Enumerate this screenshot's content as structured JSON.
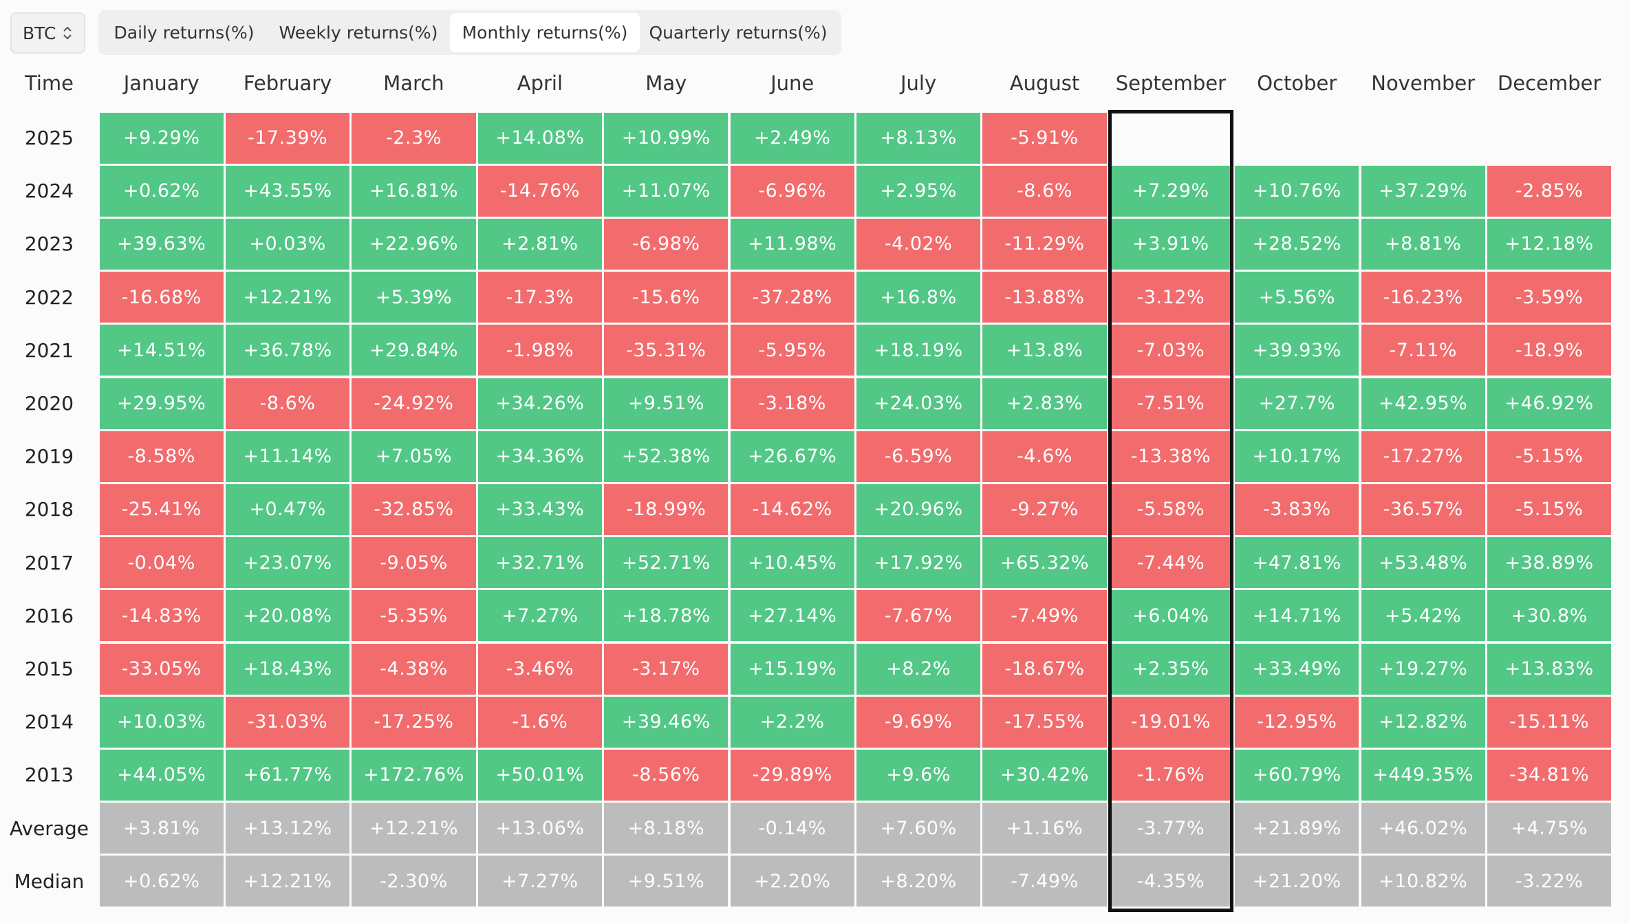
{
  "toolbar": {
    "asset": "BTC",
    "tabs": [
      "Daily returns(%)",
      "Weekly returns(%)",
      "Monthly returns(%)",
      "Quarterly returns(%)"
    ],
    "active_tab": "Monthly returns(%)"
  },
  "table": {
    "header": [
      "Time",
      "January",
      "February",
      "March",
      "April",
      "May",
      "June",
      "July",
      "August",
      "September",
      "October",
      "November",
      "December"
    ],
    "highlighted_column": "September",
    "rows": [
      {
        "label": "2025",
        "kind": "year",
        "cells": [
          "+9.29%",
          "-17.39%",
          "-2.3%",
          "+14.08%",
          "+10.99%",
          "+2.49%",
          "+8.13%",
          "-5.91%",
          null,
          null,
          null,
          null
        ]
      },
      {
        "label": "2024",
        "kind": "year",
        "cells": [
          "+0.62%",
          "+43.55%",
          "+16.81%",
          "-14.76%",
          "+11.07%",
          "-6.96%",
          "+2.95%",
          "-8.6%",
          "+7.29%",
          "+10.76%",
          "+37.29%",
          "-2.85%"
        ]
      },
      {
        "label": "2023",
        "kind": "year",
        "cells": [
          "+39.63%",
          "+0.03%",
          "+22.96%",
          "+2.81%",
          "-6.98%",
          "+11.98%",
          "-4.02%",
          "-11.29%",
          "+3.91%",
          "+28.52%",
          "+8.81%",
          "+12.18%"
        ]
      },
      {
        "label": "2022",
        "kind": "year",
        "cells": [
          "-16.68%",
          "+12.21%",
          "+5.39%",
          "-17.3%",
          "-15.6%",
          "-37.28%",
          "+16.8%",
          "-13.88%",
          "-3.12%",
          "+5.56%",
          "-16.23%",
          "-3.59%"
        ]
      },
      {
        "label": "2021",
        "kind": "year",
        "cells": [
          "+14.51%",
          "+36.78%",
          "+29.84%",
          "-1.98%",
          "-35.31%",
          "-5.95%",
          "+18.19%",
          "+13.8%",
          "-7.03%",
          "+39.93%",
          "-7.11%",
          "-18.9%"
        ]
      },
      {
        "label": "2020",
        "kind": "year",
        "cells": [
          "+29.95%",
          "-8.6%",
          "-24.92%",
          "+34.26%",
          "+9.51%",
          "-3.18%",
          "+24.03%",
          "+2.83%",
          "-7.51%",
          "+27.7%",
          "+42.95%",
          "+46.92%"
        ]
      },
      {
        "label": "2019",
        "kind": "year",
        "cells": [
          "-8.58%",
          "+11.14%",
          "+7.05%",
          "+34.36%",
          "+52.38%",
          "+26.67%",
          "-6.59%",
          "-4.6%",
          "-13.38%",
          "+10.17%",
          "-17.27%",
          "-5.15%"
        ]
      },
      {
        "label": "2018",
        "kind": "year",
        "cells": [
          "-25.41%",
          "+0.47%",
          "-32.85%",
          "+33.43%",
          "-18.99%",
          "-14.62%",
          "+20.96%",
          "-9.27%",
          "-5.58%",
          "-3.83%",
          "-36.57%",
          "-5.15%"
        ]
      },
      {
        "label": "2017",
        "kind": "year",
        "cells": [
          "-0.04%",
          "+23.07%",
          "-9.05%",
          "+32.71%",
          "+52.71%",
          "+10.45%",
          "+17.92%",
          "+65.32%",
          "-7.44%",
          "+47.81%",
          "+53.48%",
          "+38.89%"
        ]
      },
      {
        "label": "2016",
        "kind": "year",
        "cells": [
          "-14.83%",
          "+20.08%",
          "-5.35%",
          "+7.27%",
          "+18.78%",
          "+27.14%",
          "-7.67%",
          "-7.49%",
          "+6.04%",
          "+14.71%",
          "+5.42%",
          "+30.8%"
        ]
      },
      {
        "label": "2015",
        "kind": "year",
        "cells": [
          "-33.05%",
          "+18.43%",
          "-4.38%",
          "-3.46%",
          "-3.17%",
          "+15.19%",
          "+8.2%",
          "-18.67%",
          "+2.35%",
          "+33.49%",
          "+19.27%",
          "+13.83%"
        ]
      },
      {
        "label": "2014",
        "kind": "year",
        "cells": [
          "+10.03%",
          "-31.03%",
          "-17.25%",
          "-1.6%",
          "+39.46%",
          "+2.2%",
          "-9.69%",
          "-17.55%",
          "-19.01%",
          "-12.95%",
          "+12.82%",
          "-15.11%"
        ]
      },
      {
        "label": "2013",
        "kind": "year",
        "cells": [
          "+44.05%",
          "+61.77%",
          "+172.76%",
          "+50.01%",
          "-8.56%",
          "-29.89%",
          "+9.6%",
          "+30.42%",
          "-1.76%",
          "+60.79%",
          "+449.35%",
          "-34.81%"
        ]
      },
      {
        "label": "Average",
        "kind": "summary",
        "cells": [
          "+3.81%",
          "+13.12%",
          "+12.21%",
          "+13.06%",
          "+8.18%",
          "-0.14%",
          "+7.60%",
          "+1.16%",
          "-3.77%",
          "+21.89%",
          "+46.02%",
          "+4.75%"
        ]
      },
      {
        "label": "Median",
        "kind": "summary",
        "cells": [
          "+0.62%",
          "+12.21%",
          "-2.30%",
          "+7.27%",
          "+9.51%",
          "+2.20%",
          "+8.20%",
          "-7.49%",
          "-4.35%",
          "+21.20%",
          "+10.82%",
          "-3.22%"
        ]
      }
    ]
  }
}
